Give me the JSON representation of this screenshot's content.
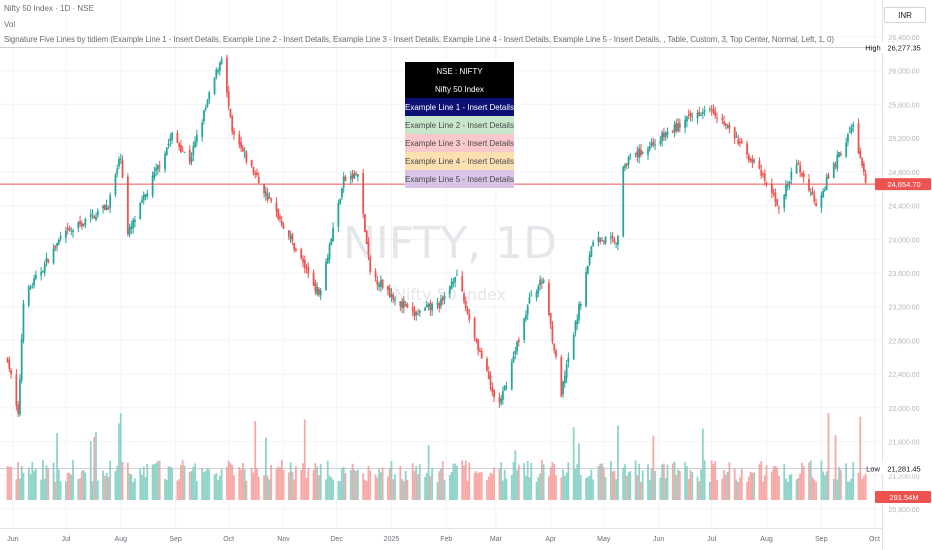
{
  "legend": {
    "title": "Nifty 50 Index · 1D · NSE",
    "vol_label": "Vol",
    "indicator": "Signature Five Lines by tidiem (Example Line 1 - Insert Details, Example Line 2 - Insert Details, Example Line 3 - Insert Details, Example Line 4 - Insert Details, Example Line 5 - Insert Details, , Table, Custom, 3, Top Center, Normal, Left, 1, 0)"
  },
  "currency": "INR",
  "watermark": {
    "symbol": "NIFTY, 1D",
    "name": "Nifty 50 Index"
  },
  "table": {
    "rows": [
      {
        "text": "NSE : NIFTY",
        "bg": "#000000",
        "fg": "#ffffff"
      },
      {
        "text": "Nifty 50 Index",
        "bg": "#000000",
        "fg": "#ffffff"
      },
      {
        "text": "Example Line 1 - Insert Details",
        "bg": "#0c1075",
        "fg": "#ffffff"
      },
      {
        "text": "Example Line 2 - Insert Details",
        "bg": "#c8e6c9",
        "fg": "#4a4a4a"
      },
      {
        "text": "Example Line 3 - Insert Details",
        "bg": "#f8c8cc",
        "fg": "#4a4a4a"
      },
      {
        "text": "Example Line 4 - Insert Details",
        "bg": "#fbe0b2",
        "fg": "#4a4a4a"
      },
      {
        "text": "Example Line 5 - Insert Details",
        "bg": "#d9c4e8",
        "fg": "#4a4a4a"
      }
    ]
  },
  "price_labels": [
    {
      "name": "high",
      "tag": "High",
      "value": "26,277.35",
      "price": 26277.35,
      "style": "plain"
    },
    {
      "name": "last",
      "tag": "",
      "value": "24,654.70",
      "price": 24654.7,
      "style": "red"
    },
    {
      "name": "low",
      "tag": "Low",
      "value": "21,281.45",
      "price": 21281.45,
      "style": "plain"
    },
    {
      "name": "volume",
      "tag": "",
      "value": "291.54M",
      "price": 21170,
      "style": "red"
    }
  ],
  "colors": {
    "up": "#26a69a",
    "down": "#ef5350",
    "vol_up": "#8fd3c9",
    "vol_down": "#f7a9a7",
    "last_line": "#ef5350",
    "extreme_line": "#b2b5be"
  },
  "chart_data": {
    "type": "candlestick",
    "title": "Nifty 50 Index · 1D · NSE",
    "xlabel": "",
    "ylabel": "",
    "ylim": [
      20800,
      26400
    ],
    "y_ticks": [
      26400,
      26000,
      25600,
      25200,
      24800,
      24400,
      24000,
      23600,
      23200,
      22800,
      22400,
      22000,
      21600,
      21200,
      20800
    ],
    "x_ticks": [
      {
        "label": "Jun",
        "date": "2024-06-01"
      },
      {
        "label": "Jul",
        "date": "2024-07-01"
      },
      {
        "label": "Aug",
        "date": "2024-08-01"
      },
      {
        "label": "Sep",
        "date": "2024-09-01"
      },
      {
        "label": "Oct",
        "date": "2024-10-01"
      },
      {
        "label": "Nov",
        "date": "2024-11-01"
      },
      {
        "label": "Dec",
        "date": "2024-12-01"
      },
      {
        "label": "2025",
        "date": "2025-01-01"
      },
      {
        "label": "Feb",
        "date": "2025-02-01"
      },
      {
        "label": "Mar",
        "date": "2025-03-01"
      },
      {
        "label": "Apr",
        "date": "2025-04-01"
      },
      {
        "label": "May",
        "date": "2025-05-01"
      },
      {
        "label": "Jun",
        "date": "2025-06-01"
      },
      {
        "label": "Jul",
        "date": "2025-07-01"
      },
      {
        "label": "Aug",
        "date": "2025-08-01"
      },
      {
        "label": "Sep",
        "date": "2025-09-01"
      },
      {
        "label": "Oct",
        "date": "2025-10-01"
      }
    ],
    "close_anchors": [
      {
        "date": "2024-05-29",
        "close": 22600
      },
      {
        "date": "2024-06-04",
        "close": 21885
      },
      {
        "date": "2024-06-07",
        "close": 23290
      },
      {
        "date": "2024-06-28",
        "close": 24010
      },
      {
        "date": "2024-07-25",
        "close": 24410
      },
      {
        "date": "2024-08-01",
        "close": 25000
      },
      {
        "date": "2024-08-05",
        "close": 24050
      },
      {
        "date": "2024-08-30",
        "close": 25235
      },
      {
        "date": "2024-09-09",
        "close": 24930
      },
      {
        "date": "2024-09-27",
        "close": 26180
      },
      {
        "date": "2024-10-03",
        "close": 25250
      },
      {
        "date": "2024-10-31",
        "close": 24205
      },
      {
        "date": "2024-11-21",
        "close": 23350
      },
      {
        "date": "2024-12-05",
        "close": 24700
      },
      {
        "date": "2024-12-13",
        "close": 24770
      },
      {
        "date": "2024-12-20",
        "close": 23600
      },
      {
        "date": "2025-01-13",
        "close": 23100
      },
      {
        "date": "2025-01-30",
        "close": 23250
      },
      {
        "date": "2025-02-06",
        "close": 23600
      },
      {
        "date": "2025-02-28",
        "close": 22120
      },
      {
        "date": "2025-03-04",
        "close": 22080
      },
      {
        "date": "2025-03-21",
        "close": 23350
      },
      {
        "date": "2025-03-28",
        "close": 23520
      },
      {
        "date": "2025-04-07",
        "close": 22160
      },
      {
        "date": "2025-04-25",
        "close": 24000
      },
      {
        "date": "2025-05-09",
        "close": 24000
      },
      {
        "date": "2025-05-12",
        "close": 24900
      },
      {
        "date": "2025-06-30",
        "close": 25600
      },
      {
        "date": "2025-07-25",
        "close": 24900
      },
      {
        "date": "2025-08-08",
        "close": 24400
      },
      {
        "date": "2025-08-18",
        "close": 24900
      },
      {
        "date": "2025-08-29",
        "close": 24430
      },
      {
        "date": "2025-09-19",
        "close": 25350
      },
      {
        "date": "2025-09-26",
        "close": 24655
      }
    ]
  }
}
